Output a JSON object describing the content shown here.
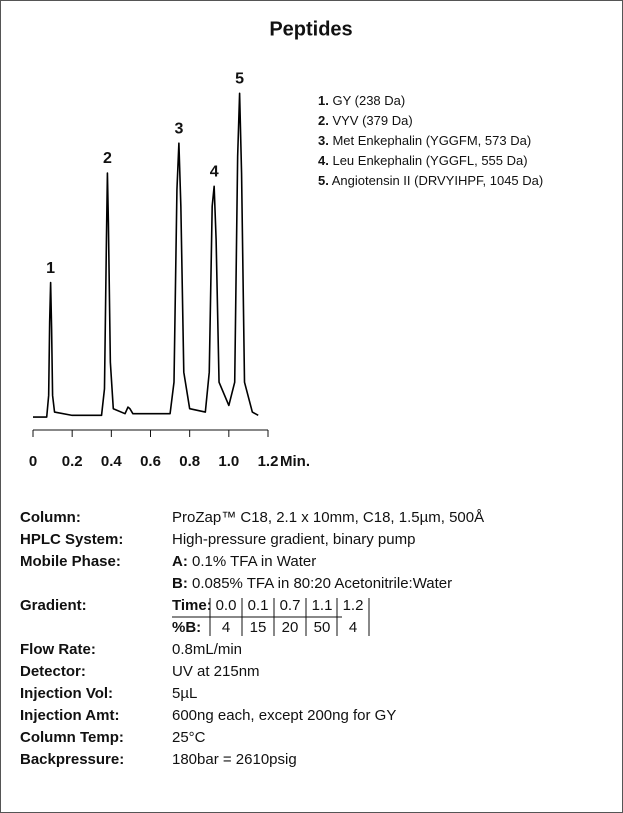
{
  "chart_data": {
    "type": "line",
    "title": "Peptides",
    "x": [
      0,
      0.07,
      0.08,
      0.085,
      0.09,
      0.095,
      0.1,
      0.11,
      0.2,
      0.35,
      0.365,
      0.375,
      0.38,
      0.385,
      0.395,
      0.41,
      0.47,
      0.485,
      0.495,
      0.51,
      0.7,
      0.72,
      0.735,
      0.745,
      0.755,
      0.77,
      0.8,
      0.88,
      0.9,
      0.915,
      0.925,
      0.935,
      0.95,
      1.0,
      1.03,
      1.045,
      1.055,
      1.065,
      1.08,
      1.12,
      1.15
    ],
    "values": [
      1.5,
      1.5,
      8,
      30,
      42,
      28,
      8,
      3,
      2,
      2,
      10,
      55,
      75,
      60,
      18,
      4,
      2.5,
      4.5,
      4,
      2.5,
      2.5,
      12,
      70,
      84,
      65,
      15,
      4,
      3,
      15,
      65,
      71,
      55,
      12,
      5,
      12,
      80,
      99,
      75,
      12,
      3,
      2
    ],
    "color": "#000000",
    "xlim": [
      0,
      1.2
    ],
    "xticks": [
      0,
      0.2,
      0.4,
      0.6,
      0.8,
      {
        "value": 1,
        "label": "1.0"
      },
      1.2
    ],
    "xlabel": "Min.",
    "ylim": [
      0,
      100
    ],
    "annotations": [
      {
        "text": "1",
        "x": 0.09,
        "y": 42
      },
      {
        "text": "2",
        "x": 0.38,
        "y": 75
      },
      {
        "text": "3",
        "x": 0.745,
        "y": 84
      },
      {
        "text": "4",
        "x": 0.925,
        "y": 71
      },
      {
        "text": "5",
        "x": 1.055,
        "y": 99
      }
    ],
    "legend": [
      {
        "number": "1.",
        "label": "GY (238 Da)"
      },
      {
        "number": "2.",
        "label": "VYV (379 Da)"
      },
      {
        "number": "3.",
        "label": "Met Enkephalin (YGGFM, 573 Da)"
      },
      {
        "number": "4.",
        "label": "Leu Enkephalin (YGGFL, 555 Da)"
      },
      {
        "number": "5.",
        "label": "Angiotensin II (DRVYIHPF, 1045 Da)"
      }
    ]
  },
  "conditions": {
    "column": {
      "label": "Column:",
      "value": "ProZap™ C18, 2.1 x 10mm, C18, 1.5µm, 500Å"
    },
    "system": {
      "label": "HPLC System:",
      "value": "High-pressure gradient, binary pump"
    },
    "mobile_phase": {
      "label": "Mobile Phase:",
      "a_key": "A:",
      "a_text": "0.1% TFA in Water",
      "b_key": "B:",
      "b_text": "0.085% TFA in 80:20 Acetonitrile:Water"
    },
    "gradient": {
      "label": "Gradient:",
      "time_label": "Time:",
      "times": [
        "0.0",
        "0.1",
        "0.7",
        "1.1",
        "1.2"
      ],
      "b_label": "%B:",
      "percents": [
        "4",
        "15",
        "20",
        "50",
        "4"
      ]
    },
    "rest": [
      {
        "label": "Flow Rate:",
        "value": "0.8mL/min"
      },
      {
        "label": "Detector:",
        "value": "UV at 215nm"
      },
      {
        "label": "Injection Vol:",
        "value": "5µL"
      },
      {
        "label": "Injection Amt:",
        "value": "600ng each, except 200ng for GY"
      },
      {
        "label": "Column Temp:",
        "value": "25°C"
      },
      {
        "label": "Backpressure:",
        "value": "180bar = 2610psig"
      }
    ]
  }
}
